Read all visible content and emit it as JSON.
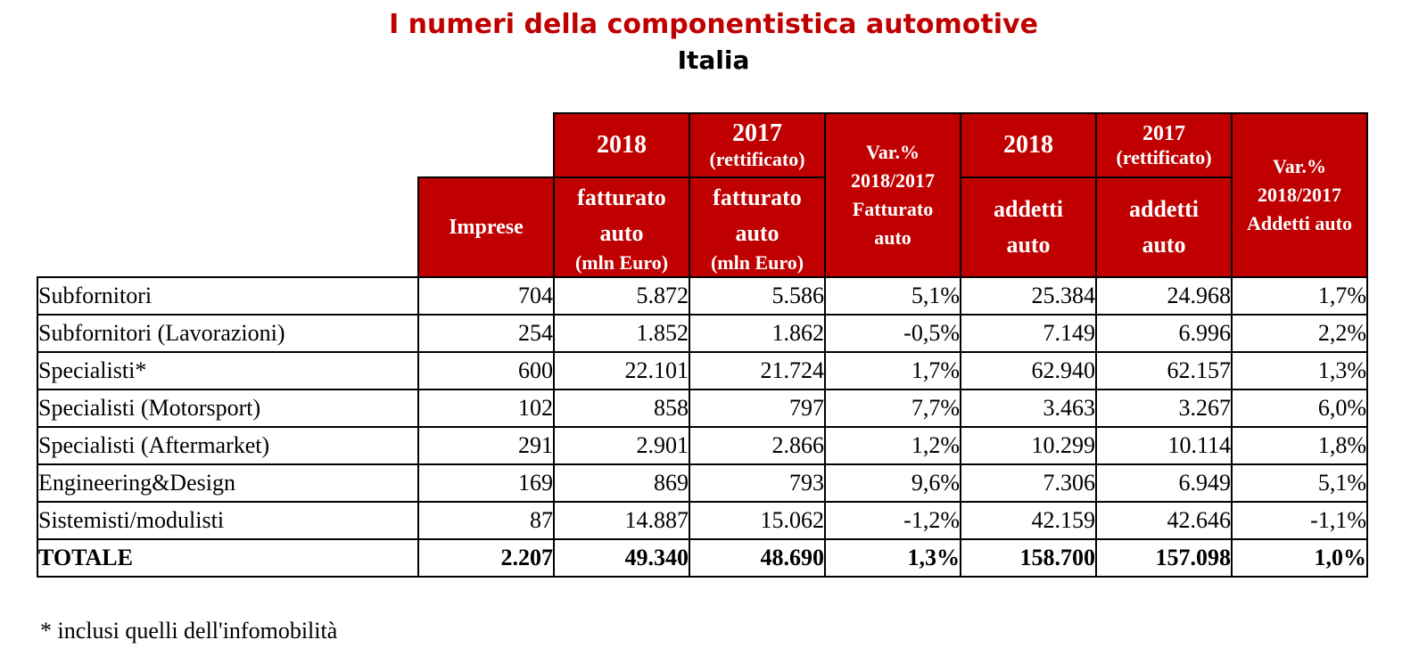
{
  "title": "I numeri della componentistica automotive",
  "subtitle": "Italia",
  "header": {
    "y2018": "2018",
    "y2017": "2017",
    "rettificato": "(rettificato)",
    "var": "Var.%",
    "period": "2018/2017",
    "fatturato_label": "Fatturato",
    "auto": "auto",
    "fatturato": "fatturato",
    "mln_euro": "(mln Euro)",
    "addetti": "addetti",
    "addetti_auto": "Addetti auto",
    "imprese": "Imprese"
  },
  "chart_data": {
    "type": "table",
    "title": "I numeri della componentistica automotive",
    "subtitle": "Italia",
    "columns": [
      "Imprese",
      "2018 fatturato auto (mln Euro)",
      "2017 (rettificato) fatturato auto (mln Euro)",
      "Var.% 2018/2017 Fatturato auto",
      "2018 addetti auto",
      "2017 (rettificato) addetti auto",
      "Var.% 2018/2017 Addetti auto"
    ],
    "rows": [
      {
        "label": "Subfornitori",
        "values": [
          "704",
          "5.872",
          "5.586",
          "5,1%",
          "25.384",
          "24.968",
          "1,7%"
        ]
      },
      {
        "label": "Subfornitori (Lavorazioni)",
        "values": [
          "254",
          "1.852",
          "1.862",
          "-0,5%",
          "7.149",
          "6.996",
          "2,2%"
        ]
      },
      {
        "label": "Specialisti*",
        "values": [
          "600",
          "22.101",
          "21.724",
          "1,7%",
          "62.940",
          "62.157",
          "1,3%"
        ]
      },
      {
        "label": "Specialisti (Motorsport)",
        "values": [
          "102",
          "858",
          "797",
          "7,7%",
          "3.463",
          "3.267",
          "6,0%"
        ]
      },
      {
        "label": "Specialisti (Aftermarket)",
        "values": [
          "291",
          "2.901",
          "2.866",
          "1,2%",
          "10.299",
          "10.114",
          "1,8%"
        ]
      },
      {
        "label": "Engineering&Design",
        "values": [
          "169",
          "869",
          "793",
          "9,6%",
          "7.306",
          "6.949",
          "5,1%"
        ]
      },
      {
        "label": "Sistemisti/modulisti",
        "values": [
          "87",
          "14.887",
          "15.062",
          "-1,2%",
          "42.159",
          "42.646",
          "-1,1%"
        ]
      }
    ],
    "total": {
      "label": "TOTALE",
      "values": [
        "2.207",
        "49.340",
        "48.690",
        "1,3%",
        "158.700",
        "157.098",
        "1,0%"
      ]
    }
  },
  "footnote": "* inclusi quelli dell'infomobilità",
  "colors": {
    "header_bg": "#c00000",
    "title": "#c00000"
  }
}
